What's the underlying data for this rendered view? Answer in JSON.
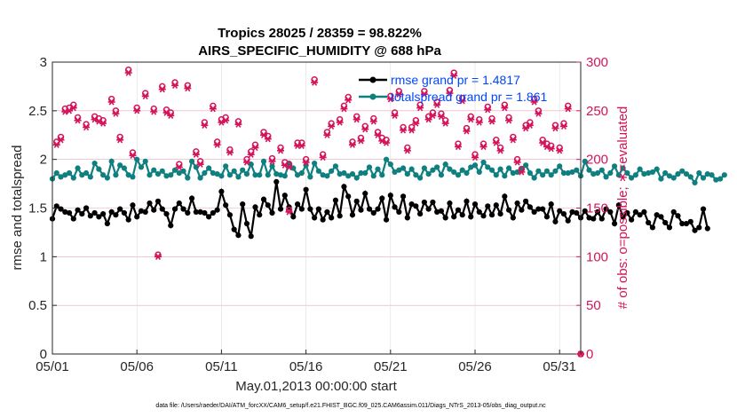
{
  "chart_data": {
    "type": "line",
    "title": "Tropics 28025 / 28359 = 98.822%",
    "subtitle": "AIRS_SPECIFIC_HUMIDITY @ 688 hPa",
    "xlabel": "May.01,2013 00:00:00 start",
    "ylabel_left": "rmse and totalspread",
    "ylabel_right": "# of obs: o=possible; ∗=evaluated",
    "footer": "data file: /Users/raeder/DAI/ATM_forcXX/CAM6_setup/f.e21.FHIST_BGC.f09_025.CAM6assim.011/Diags_NTrS_2013-05/obs_diag_output.nc",
    "xlim": [
      1,
      32.25
    ],
    "ylim_left": [
      0,
      3
    ],
    "ylim_right": [
      0,
      300
    ],
    "xticks": [
      1,
      6,
      11,
      16,
      21,
      26,
      31
    ],
    "xticklabels": [
      "05/01",
      "05/06",
      "05/11",
      "05/16",
      "05/21",
      "05/26",
      "05/31"
    ],
    "yticks_left": [
      0,
      0.5,
      1,
      1.5,
      2,
      2.5,
      3
    ],
    "yticklabels_left": [
      "0",
      "0.5",
      "1",
      "1.5",
      "2",
      "2.5",
      "3"
    ],
    "yticks_right": [
      0,
      50,
      100,
      150,
      200,
      250,
      300
    ],
    "yticklabels_right": [
      "0",
      "50",
      "100",
      "150",
      "200",
      "250",
      "300"
    ],
    "legend": [
      "rmse grand pr = 1.4817",
      "totalspread grand pr = 1.861"
    ],
    "colors": {
      "rmse": "#000000",
      "spread": "#0f7f7f",
      "obs": "#d4145a",
      "axis": "#262626",
      "right_axis": "#d4145a",
      "legend_text": "#0046ff"
    },
    "series": [
      {
        "name": "rmse",
        "x_start": 1,
        "x_step": 0.25,
        "values": [
          1.39,
          1.52,
          1.49,
          1.46,
          1.45,
          1.39,
          1.48,
          1.44,
          1.5,
          1.42,
          1.45,
          1.41,
          1.44,
          1.34,
          1.46,
          1.43,
          1.49,
          1.45,
          1.38,
          1.53,
          1.41,
          1.47,
          1.46,
          1.55,
          1.48,
          1.57,
          1.49,
          1.44,
          1.32,
          1.49,
          1.55,
          1.49,
          1.45,
          1.6,
          1.46,
          1.46,
          1.45,
          1.41,
          1.45,
          1.48,
          1.67,
          1.53,
          1.43,
          1.28,
          1.22,
          1.54,
          1.34,
          1.21,
          1.51,
          1.43,
          1.59,
          1.53,
          1.45,
          1.77,
          1.49,
          1.63,
          1.51,
          1.41,
          1.54,
          1.49,
          1.69,
          1.49,
          1.4,
          1.49,
          1.38,
          1.46,
          1.4,
          1.58,
          1.42,
          1.72,
          1.62,
          1.43,
          1.57,
          1.48,
          1.65,
          1.49,
          1.45,
          1.49,
          1.6,
          1.38,
          1.63,
          1.51,
          1.46,
          1.62,
          1.4,
          1.54,
          1.52,
          1.44,
          1.56,
          1.49,
          1.56,
          1.46,
          1.47,
          1.4,
          1.55,
          1.41,
          1.48,
          1.43,
          1.57,
          1.41,
          1.54,
          1.46,
          1.42,
          1.52,
          1.43,
          1.53,
          1.44,
          1.62,
          1.48,
          1.4,
          1.55,
          1.48,
          1.57,
          1.51,
          1.46,
          1.49,
          1.49,
          1.41,
          1.54,
          1.36,
          1.47,
          1.44,
          1.37,
          1.46,
          1.45,
          1.4,
          1.47,
          1.4,
          1.39,
          1.46,
          1.39,
          1.49,
          1.46,
          1.34,
          1.53,
          1.41,
          1.45,
          1.38,
          1.46,
          1.43,
          1.46,
          1.35,
          1.3,
          1.43,
          1.41,
          1.35,
          1.3,
          1.46,
          1.42,
          1.34,
          1.34,
          1.36,
          1.27,
          1.3,
          1.49,
          1.29
        ]
      },
      {
        "name": "totalspread",
        "x_start": 1,
        "x_step": 0.25,
        "values": [
          1.8,
          1.86,
          1.82,
          1.84,
          1.86,
          1.81,
          1.91,
          1.84,
          1.86,
          1.82,
          1.96,
          1.9,
          1.84,
          1.81,
          1.98,
          1.84,
          1.94,
          1.91,
          1.84,
          1.82,
          2.0,
          1.92,
          1.98,
          1.84,
          1.89,
          1.85,
          1.88,
          1.83,
          1.84,
          1.89,
          1.86,
          1.88,
          1.81,
          1.98,
          1.92,
          1.81,
          1.86,
          1.91,
          1.86,
          1.85,
          1.83,
          1.93,
          1.84,
          1.88,
          1.82,
          1.89,
          1.85,
          1.95,
          1.84,
          1.84,
          1.98,
          1.84,
          1.93,
          1.85,
          1.84,
          1.83,
          1.96,
          1.91,
          1.84,
          1.86,
          1.94,
          1.82,
          1.96,
          1.88,
          1.84,
          1.83,
          1.88,
          1.93,
          1.85,
          1.86,
          1.83,
          1.85,
          1.81,
          1.86,
          1.86,
          1.92,
          1.83,
          1.9,
          1.84,
          2.0,
          1.95,
          1.87,
          1.89,
          1.91,
          1.85,
          1.9,
          1.84,
          1.81,
          1.91,
          1.85,
          1.89,
          1.92,
          1.84,
          1.95,
          1.9,
          1.87,
          1.84,
          1.89,
          1.86,
          1.92,
          1.94,
          1.87,
          1.97,
          1.92,
          1.89,
          1.84,
          1.9,
          1.83,
          1.91,
          1.86,
          1.87,
          1.9,
          1.94,
          1.86,
          1.81,
          1.88,
          1.84,
          1.88,
          1.84,
          1.88,
          1.93,
          1.86,
          1.86,
          1.87,
          1.89,
          1.83,
          1.98,
          1.89,
          1.85,
          1.86,
          1.89,
          1.82,
          1.86,
          1.93,
          1.84,
          1.91,
          1.86,
          1.81,
          1.84,
          1.9,
          1.85,
          1.86,
          1.87,
          1.9,
          1.8,
          1.86,
          1.83,
          1.81,
          1.85,
          1.88,
          1.85,
          1.82,
          1.76,
          1.86,
          1.81,
          1.85,
          1.84,
          1.79,
          1.8,
          1.84
        ]
      },
      {
        "name": "obs_possible",
        "axis": "right",
        "points": [
          [
            1.25,
            218
          ],
          [
            1.5,
            223
          ],
          [
            1.75,
            252
          ],
          [
            2.0,
            253
          ],
          [
            2.25,
            256
          ],
          [
            2.5,
            243
          ],
          [
            3.0,
            236
          ],
          [
            3.5,
            244
          ],
          [
            3.75,
            242
          ],
          [
            4.0,
            240
          ],
          [
            4.5,
            262
          ],
          [
            4.75,
            250
          ],
          [
            5.0,
            223
          ],
          [
            5.5,
            292
          ],
          [
            5.75,
            207
          ],
          [
            6.0,
            253
          ],
          [
            6.5,
            268
          ],
          [
            7.0,
            252
          ],
          [
            7.5,
            275
          ],
          [
            7.75,
            251
          ],
          [
            8.0,
            248
          ],
          [
            8.25,
            279
          ],
          [
            8.5,
            195
          ],
          [
            9.0,
            276
          ],
          [
            9.5,
            208
          ],
          [
            9.75,
            198
          ],
          [
            10.0,
            238
          ],
          [
            10.5,
            255
          ],
          [
            10.75,
            218
          ],
          [
            11.0,
            241
          ],
          [
            11.25,
            243
          ],
          [
            11.5,
            210
          ],
          [
            12.0,
            239
          ],
          [
            12.5,
            200
          ],
          [
            12.75,
            208
          ],
          [
            13.0,
            215
          ],
          [
            13.5,
            228
          ],
          [
            13.75,
            224
          ],
          [
            14.0,
            201
          ],
          [
            14.5,
            212
          ],
          [
            14.75,
            197
          ],
          [
            15.0,
            195
          ],
          [
            15.5,
            217
          ],
          [
            15.75,
            217
          ],
          [
            16.0,
            200
          ],
          [
            16.5,
            282
          ],
          [
            17.0,
            205
          ],
          [
            17.25,
            228
          ],
          [
            17.5,
            237
          ],
          [
            18.0,
            241
          ],
          [
            18.25,
            255
          ],
          [
            18.5,
            264
          ],
          [
            18.75,
            218
          ],
          [
            19.0,
            244
          ],
          [
            19.25,
            222
          ],
          [
            19.5,
            234
          ],
          [
            20.0,
            242
          ],
          [
            20.25,
            228
          ],
          [
            20.5,
            222
          ],
          [
            20.75,
            220
          ],
          [
            21.0,
            265
          ],
          [
            21.25,
            248
          ],
          [
            21.5,
            270
          ],
          [
            21.75,
            233
          ],
          [
            22.0,
            212
          ],
          [
            22.25,
            233
          ],
          [
            22.5,
            240
          ],
          [
            22.75,
            256
          ],
          [
            23.0,
            270
          ],
          [
            23.25,
            244
          ],
          [
            23.5,
            248
          ],
          [
            23.75,
            259
          ],
          [
            24.0,
            247
          ],
          [
            24.25,
            240
          ],
          [
            24.5,
            271
          ],
          [
            24.75,
            289
          ],
          [
            25.0,
            216
          ],
          [
            25.25,
            263
          ],
          [
            25.5,
            232
          ],
          [
            25.75,
            244
          ],
          [
            26.0,
            205
          ],
          [
            26.25,
            241
          ],
          [
            26.5,
            216
          ],
          [
            26.75,
            254
          ],
          [
            27.0,
            242
          ],
          [
            27.25,
            220
          ],
          [
            27.5,
            212
          ],
          [
            27.75,
            256
          ],
          [
            28.0,
            243
          ],
          [
            28.25,
            223
          ],
          [
            28.5,
            200
          ],
          [
            28.75,
            190
          ],
          [
            29.0,
            235
          ],
          [
            29.25,
            238
          ],
          [
            29.5,
            262
          ],
          [
            29.75,
            250
          ],
          [
            30.0,
            220
          ],
          [
            30.25,
            216
          ],
          [
            30.5,
            214
          ],
          [
            30.75,
            235
          ],
          [
            31.0,
            212
          ],
          [
            31.25,
            237
          ],
          [
            31.5,
            255
          ],
          [
            32.25,
            0
          ]
        ]
      },
      {
        "name": "obs_evaluated",
        "axis": "right",
        "points": [
          [
            1.25,
            215
          ],
          [
            1.5,
            220
          ],
          [
            1.75,
            249
          ],
          [
            2.0,
            250
          ],
          [
            2.25,
            253
          ],
          [
            2.5,
            240
          ],
          [
            3.0,
            233
          ],
          [
            3.5,
            241
          ],
          [
            3.75,
            239
          ],
          [
            4.0,
            237
          ],
          [
            4.5,
            259
          ],
          [
            4.75,
            247
          ],
          [
            5.0,
            220
          ],
          [
            5.5,
            289
          ],
          [
            5.75,
            204
          ],
          [
            6.0,
            250
          ],
          [
            6.5,
            265
          ],
          [
            7.0,
            249
          ],
          [
            7.5,
            272
          ],
          [
            7.75,
            248
          ],
          [
            8.0,
            245
          ],
          [
            8.25,
            276
          ],
          [
            8.5,
            192
          ],
          [
            9.0,
            273
          ],
          [
            9.5,
            205
          ],
          [
            9.75,
            195
          ],
          [
            10.0,
            235
          ],
          [
            10.5,
            252
          ],
          [
            10.75,
            215
          ],
          [
            11.0,
            238
          ],
          [
            11.25,
            240
          ],
          [
            11.5,
            207
          ],
          [
            12.0,
            236
          ],
          [
            12.5,
            197
          ],
          [
            12.75,
            205
          ],
          [
            13.0,
            212
          ],
          [
            13.5,
            225
          ],
          [
            13.75,
            221
          ],
          [
            14.0,
            198
          ],
          [
            14.5,
            209
          ],
          [
            14.75,
            194
          ],
          [
            15.0,
            192
          ],
          [
            15.5,
            214
          ],
          [
            15.75,
            214
          ],
          [
            16.0,
            197
          ],
          [
            16.5,
            279
          ],
          [
            17.0,
            202
          ],
          [
            17.25,
            225
          ],
          [
            17.5,
            234
          ],
          [
            18.0,
            238
          ],
          [
            18.25,
            252
          ],
          [
            18.5,
            261
          ],
          [
            18.75,
            215
          ],
          [
            19.0,
            241
          ],
          [
            19.25,
            219
          ],
          [
            19.5,
            231
          ],
          [
            20.0,
            239
          ],
          [
            20.25,
            225
          ],
          [
            20.5,
            219
          ],
          [
            20.75,
            217
          ],
          [
            21.0,
            262
          ],
          [
            21.25,
            245
          ],
          [
            21.5,
            267
          ],
          [
            21.75,
            230
          ],
          [
            22.0,
            209
          ],
          [
            22.25,
            230
          ],
          [
            22.5,
            237
          ],
          [
            22.75,
            253
          ],
          [
            23.0,
            267
          ],
          [
            23.25,
            241
          ],
          [
            23.5,
            245
          ],
          [
            23.75,
            256
          ],
          [
            24.0,
            244
          ],
          [
            24.25,
            237
          ],
          [
            24.5,
            268
          ],
          [
            24.75,
            286
          ],
          [
            25.0,
            213
          ],
          [
            25.25,
            260
          ],
          [
            25.5,
            229
          ],
          [
            25.75,
            241
          ],
          [
            26.0,
            202
          ],
          [
            26.25,
            238
          ],
          [
            26.5,
            213
          ],
          [
            26.75,
            251
          ],
          [
            27.0,
            239
          ],
          [
            27.25,
            217
          ],
          [
            27.5,
            209
          ],
          [
            27.75,
            253
          ],
          [
            28.0,
            240
          ],
          [
            28.25,
            220
          ],
          [
            28.5,
            197
          ],
          [
            28.75,
            187
          ],
          [
            29.0,
            232
          ],
          [
            29.25,
            235
          ],
          [
            29.5,
            259
          ],
          [
            29.75,
            247
          ],
          [
            30.0,
            217
          ],
          [
            30.25,
            213
          ],
          [
            30.5,
            211
          ],
          [
            30.75,
            232
          ],
          [
            31.0,
            209
          ],
          [
            31.25,
            234
          ],
          [
            31.5,
            252
          ],
          [
            32.25,
            0
          ]
        ]
      }
    ],
    "outliers": {
      "possible": [
        [
          7.25,
          102
        ],
        [
          15.0,
          148
        ]
      ],
      "evaluated": [
        [
          7.25,
          100
        ],
        [
          15.0,
          146
        ]
      ]
    }
  }
}
